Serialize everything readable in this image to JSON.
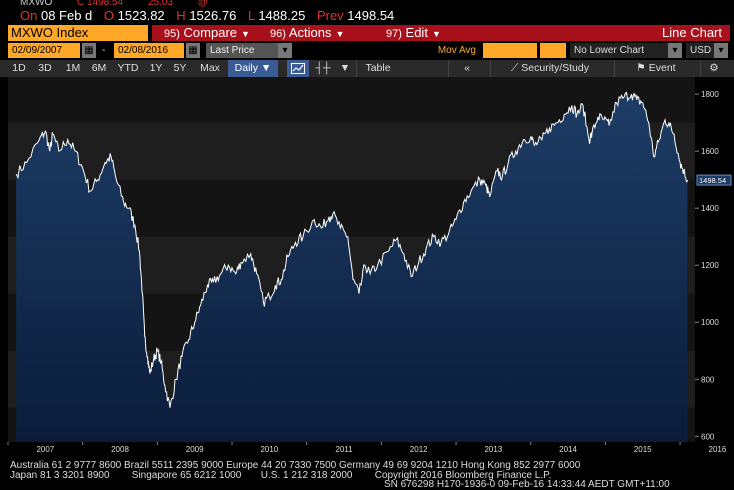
{
  "ticker_top": {
    "left": "MXWO",
    "mid": "C 1498.54",
    "right": "25.03",
    "end": "@"
  },
  "quote": {
    "on_label": "On",
    "date": "08 Feb d",
    "open_label": "O",
    "open": "1523.82",
    "high_label": "H",
    "high": "1526.76",
    "low_label": "L",
    "low": "1488.25",
    "prev_label": "Prev",
    "prev": "1498.54"
  },
  "menu": {
    "security": "MXWO Index",
    "compare_num": "95)",
    "compare": "Compare",
    "actions_num": "96)",
    "actions": "Actions",
    "edit_num": "97)",
    "edit": "Edit",
    "view": "Line Chart"
  },
  "fields": {
    "start_date": "02/09/2007",
    "dash": "-",
    "end_date": "02/08/2016",
    "field": "Last Price",
    "study_label": "Mov Avg",
    "lower_chart": "No Lower Chart",
    "currency": "USD"
  },
  "toolbar": {
    "periods": [
      "1D",
      "3D",
      "1M",
      "6M",
      "YTD",
      "1Y",
      "5Y",
      "Max"
    ],
    "frequency": "Daily",
    "table": "Table",
    "security_study": "Security/Study",
    "event": "Event"
  },
  "colors": {
    "menubar": "#a8101b",
    "orange": "#ffa726",
    "active": "#3a5b94",
    "fill_top": "#1d3d66",
    "fill_bottom": "#0a1c3a"
  },
  "chart_data": {
    "type": "area",
    "title": "",
    "ylim": [
      580,
      1860
    ],
    "y_ticks": [
      600,
      800,
      1000,
      1200,
      1400,
      1600,
      1800
    ],
    "x_ticks": [
      "2007",
      "2008",
      "2009",
      "2010",
      "2011",
      "2012",
      "2013",
      "2014",
      "2015",
      "2016"
    ],
    "last_value": "1498.54",
    "series": [
      {
        "values": [
          [
            2007.11,
            1520
          ],
          [
            2007.25,
            1560
          ],
          [
            2007.42,
            1640
          ],
          [
            2007.5,
            1670
          ],
          [
            2007.56,
            1600
          ],
          [
            2007.6,
            1660
          ],
          [
            2007.68,
            1600
          ],
          [
            2007.8,
            1640
          ],
          [
            2007.9,
            1600
          ],
          [
            2008.0,
            1540
          ],
          [
            2008.1,
            1460
          ],
          [
            2008.2,
            1500
          ],
          [
            2008.3,
            1560
          ],
          [
            2008.38,
            1580
          ],
          [
            2008.45,
            1500
          ],
          [
            2008.55,
            1420
          ],
          [
            2008.62,
            1400
          ],
          [
            2008.7,
            1340
          ],
          [
            2008.76,
            1250
          ],
          [
            2008.8,
            1100
          ],
          [
            2008.83,
            950
          ],
          [
            2008.87,
            880
          ],
          [
            2008.9,
            820
          ],
          [
            2008.95,
            870
          ],
          [
            2009.0,
            900
          ],
          [
            2009.05,
            860
          ],
          [
            2009.1,
            780
          ],
          [
            2009.17,
            700
          ],
          [
            2009.25,
            800
          ],
          [
            2009.33,
            880
          ],
          [
            2009.42,
            940
          ],
          [
            2009.5,
            1000
          ],
          [
            2009.58,
            1060
          ],
          [
            2009.67,
            1130
          ],
          [
            2009.75,
            1140
          ],
          [
            2009.85,
            1170
          ],
          [
            2009.95,
            1200
          ],
          [
            2010.05,
            1170
          ],
          [
            2010.12,
            1210
          ],
          [
            2010.25,
            1240
          ],
          [
            2010.33,
            1170
          ],
          [
            2010.42,
            1070
          ],
          [
            2010.5,
            1090
          ],
          [
            2010.58,
            1130
          ],
          [
            2010.66,
            1150
          ],
          [
            2010.75,
            1230
          ],
          [
            2010.85,
            1280
          ],
          [
            2010.95,
            1300
          ],
          [
            2011.1,
            1360
          ],
          [
            2011.2,
            1330
          ],
          [
            2011.3,
            1370
          ],
          [
            2011.35,
            1380
          ],
          [
            2011.45,
            1330
          ],
          [
            2011.55,
            1300
          ],
          [
            2011.62,
            1150
          ],
          [
            2011.7,
            1100
          ],
          [
            2011.78,
            1200
          ],
          [
            2011.85,
            1170
          ],
          [
            2011.95,
            1200
          ],
          [
            2012.1,
            1250
          ],
          [
            2012.2,
            1290
          ],
          [
            2012.3,
            1240
          ],
          [
            2012.4,
            1160
          ],
          [
            2012.5,
            1210
          ],
          [
            2012.6,
            1260
          ],
          [
            2012.7,
            1300
          ],
          [
            2012.8,
            1280
          ],
          [
            2012.9,
            1310
          ],
          [
            2013.0,
            1360
          ],
          [
            2013.1,
            1420
          ],
          [
            2013.2,
            1460
          ],
          [
            2013.32,
            1500
          ],
          [
            2013.4,
            1480
          ],
          [
            2013.45,
            1440
          ],
          [
            2013.55,
            1530
          ],
          [
            2013.62,
            1510
          ],
          [
            2013.7,
            1560
          ],
          [
            2013.8,
            1600
          ],
          [
            2013.9,
            1640
          ],
          [
            2014.0,
            1650
          ],
          [
            2014.05,
            1620
          ],
          [
            2014.15,
            1640
          ],
          [
            2014.25,
            1680
          ],
          [
            2014.35,
            1700
          ],
          [
            2014.45,
            1730
          ],
          [
            2014.55,
            1760
          ],
          [
            2014.62,
            1730
          ],
          [
            2014.7,
            1760
          ],
          [
            2014.78,
            1640
          ],
          [
            2014.82,
            1660
          ],
          [
            2014.9,
            1720
          ],
          [
            2014.98,
            1710
          ],
          [
            2015.05,
            1690
          ],
          [
            2015.15,
            1770
          ],
          [
            2015.25,
            1790
          ],
          [
            2015.35,
            1800
          ],
          [
            2015.42,
            1780
          ],
          [
            2015.5,
            1770
          ],
          [
            2015.58,
            1700
          ],
          [
            2015.65,
            1580
          ],
          [
            2015.72,
            1640
          ],
          [
            2015.8,
            1710
          ],
          [
            2015.86,
            1690
          ],
          [
            2015.92,
            1660
          ],
          [
            2016.0,
            1560
          ],
          [
            2016.05,
            1530
          ],
          [
            2016.1,
            1498.54
          ]
        ]
      }
    ]
  }
}
